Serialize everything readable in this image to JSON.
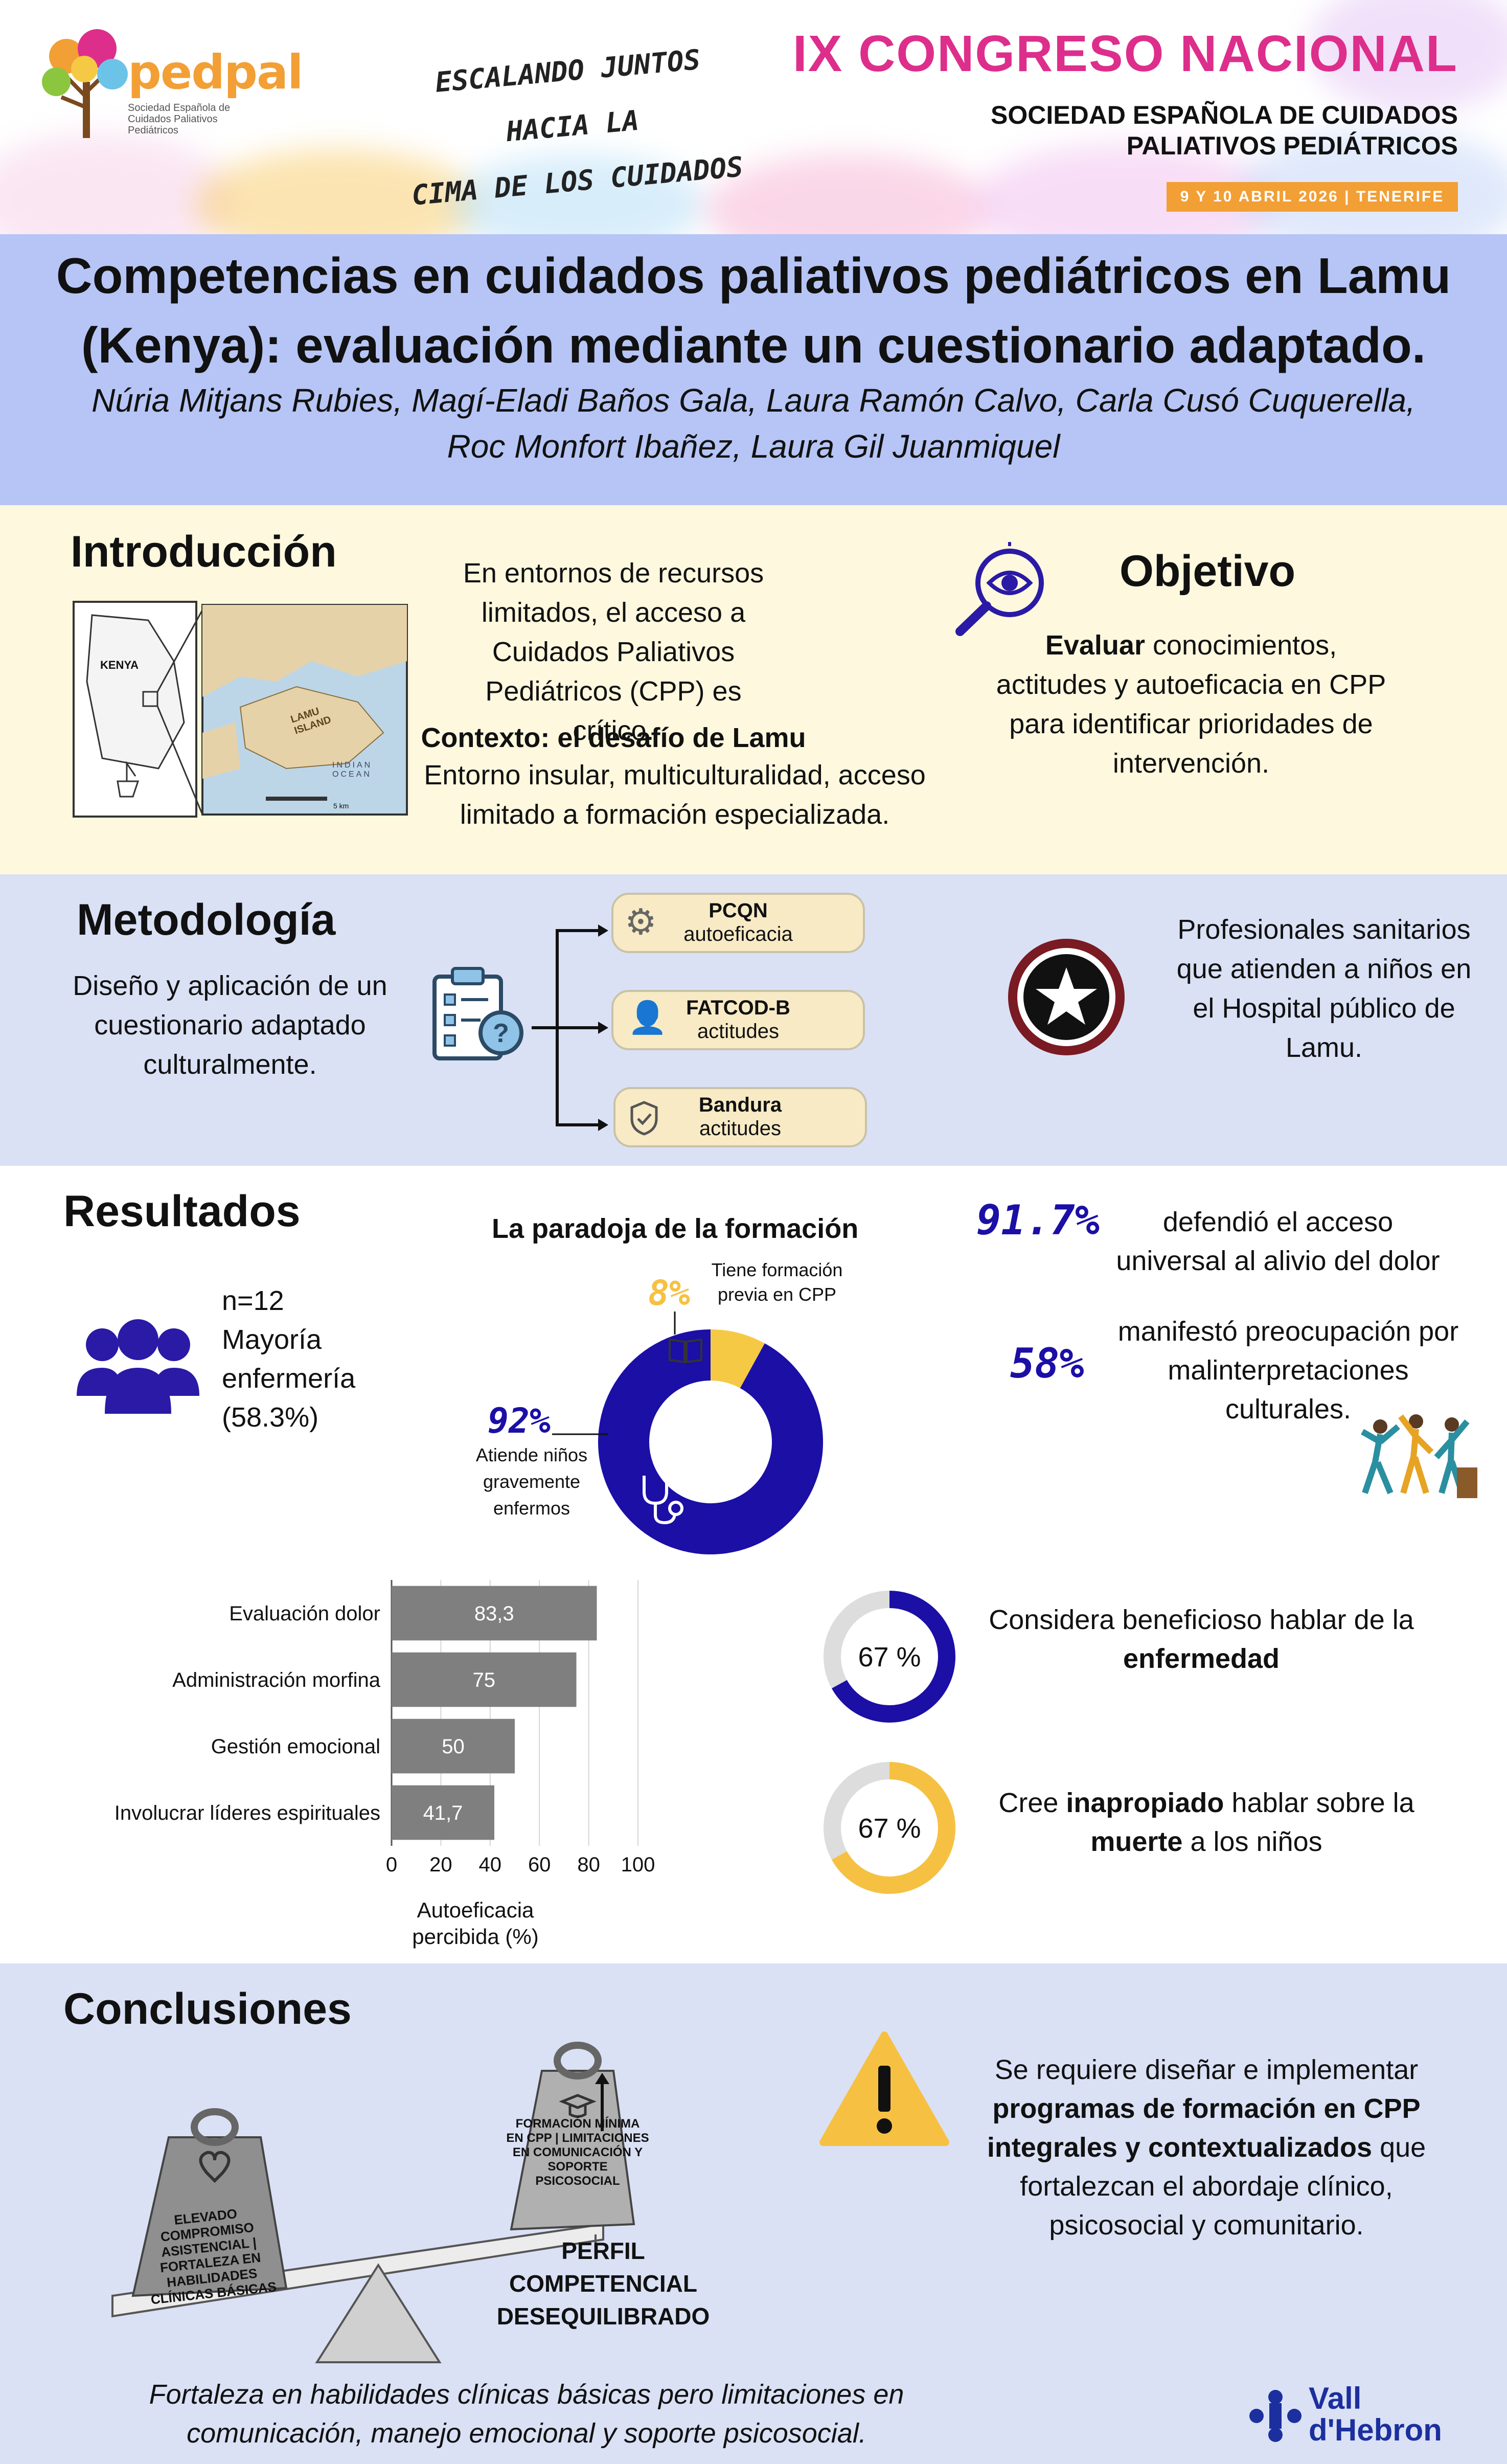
{
  "header": {
    "logo_text": "pedpal",
    "logo_sub": "Sociedad Española de Cuidados Paliativos Pediátricos",
    "slogan": [
      "ESCALANDO JUNTOS",
      "HACIA LA",
      "CIMA DE LOS CUIDADOS"
    ],
    "congress": "IX CONGRESO NACIONAL",
    "society_line1": "SOCIEDAD ESPAÑOLA DE CUIDADOS",
    "society_line2": "PALIATIVOS PEDIÁTRICOS",
    "dates": "9 Y 10 ABRIL 2026",
    "place": "TENERIFE"
  },
  "title": {
    "line1": "Competencias en cuidados paliativos pediátricos en Lamu",
    "line2": "(Kenya): evaluación mediante un cuestionario adaptado.",
    "authors1": "Núria Mitjans Rubies, Magí-Eladi Baños Gala, Laura Ramón Calvo, Carla Cusó Cuquerella,",
    "authors2": "Roc Monfort Ibañez, Laura Gil Juanmiquel"
  },
  "intro": {
    "heading": "Introducción",
    "map_kenya": "KENYA",
    "map_island": "LAMU ISLAND",
    "map_ocean": "INDIAN OCEAN",
    "map_scale": "5 km",
    "text1": "En entornos de recursos limitados, el acceso a Cuidados Paliativos Pediátricos (CPP) es crítico.",
    "context_bold": "Contexto: el desafío de Lamu",
    "context_text": "Entorno insular, multiculturalidad, acceso limitado a formación especializada."
  },
  "objective": {
    "heading": "Objetivo",
    "bold": "Evaluar",
    "text": " conocimientos, actitudes y autoeficacia en CPP para identificar prioridades de intervención."
  },
  "method": {
    "heading": "Metodología",
    "text": "Diseño y aplicación de un cuestionario adaptado culturalmente.",
    "tools": [
      {
        "name": "PCQN",
        "sub": "autoeficacia"
      },
      {
        "name": "FATCOD-B",
        "sub": "actitudes"
      },
      {
        "name": "Bandura",
        "sub": "actitudes"
      }
    ],
    "population": "Profesionales sanitarios que atienden a niños en el Hospital público de Lamu."
  },
  "results": {
    "heading": "Resultados",
    "n": "n=12",
    "majority": "Mayoría enfermería (58.3%)",
    "paradox_title": "La paradoja de la formación",
    "pct_training": "8%",
    "label_training": "Tiene formación previa en CPP",
    "pct_care": "92%",
    "label_care": "Atiende niños gravemente enfermos",
    "stat1_pct": "91.7%",
    "stat1_text": "defendió el acceso universal al alivio del dolor",
    "stat2_pct": "58%",
    "stat2_text": "manifestó preocupación por malinterpretaciones culturales.",
    "ring1_pct": "67 %",
    "ring1_text_a": "Considera beneficioso hablar de la",
    "ring1_text_b": "enfermedad",
    "ring2_pct": "67 %",
    "ring2_text_a": "Cree ",
    "ring2_bold_a": "inapropiado",
    "ring2_text_b": " hablar sobre la",
    "ring2_bold_b": "muerte",
    "ring2_text_c": " a los niños"
  },
  "chart_data": {
    "type": "bar",
    "orientation": "horizontal",
    "categories": [
      "Evaluación dolor",
      "Administración morfina",
      "Gestión emocional",
      "Involucrar líderes espirituales"
    ],
    "values": [
      83.3,
      75,
      50,
      41.7
    ],
    "value_labels": [
      "83,3",
      "75",
      "50",
      "41,7"
    ],
    "xlim": [
      0,
      100
    ],
    "xticks": [
      "0",
      "20",
      "40",
      "60",
      "80",
      "100"
    ],
    "xlabel": "Autoeficacia percibida (%)",
    "bar_color": "#7f7f7f",
    "grid": true
  },
  "donut_data": {
    "type": "pie",
    "categories": [
      "Tiene formación previa en CPP",
      "Atiende niños gravemente enfermos"
    ],
    "values": [
      8,
      92
    ],
    "colors": [
      "#f6c945",
      "#1b0fa6"
    ]
  },
  "ring_data": [
    {
      "value": 67,
      "color": "#1b0fa6"
    },
    {
      "value": 67,
      "color": "#f6c142"
    }
  ],
  "conclusions": {
    "heading": "Conclusiones",
    "weight_left": "ELEVADO COMPROMISO ASISTENCIAL | FORTALEZA EN HABILIDADES CLÍNICAS BÁSICAS",
    "weight_right": "FORMACIÓN MÍNIMA EN CPP | LIMITACIONES EN COMUNICACIÓN Y SOPORTE PSICOSOCIAL",
    "profile": [
      "PERFIL",
      "COMPETENCIAL",
      "DESEQUILIBRADO"
    ],
    "text_a": "Se requiere diseñar e implementar ",
    "text_bold": "programas de formación en CPP integrales y contextualizados",
    "text_b": " que fortalezcan el abordaje clínico, psicosocial y comunitario.",
    "footer_line1": "Fortaleza en habilidades clínicas básicas pero limitaciones en",
    "footer_line2": "comunicación, manejo emocional y soporte psicosocial.",
    "hospital_1": "Vall",
    "hospital_2": "d'Hebron"
  },
  "colors": {
    "title_band": "#b6c5f5",
    "cream_band": "#fdf8de",
    "blue_band": "#dae1f5",
    "orange": "#f29f35",
    "magenta": "#dd2e8c",
    "navy": "#1b0fa6",
    "yellow": "#f6c945"
  }
}
